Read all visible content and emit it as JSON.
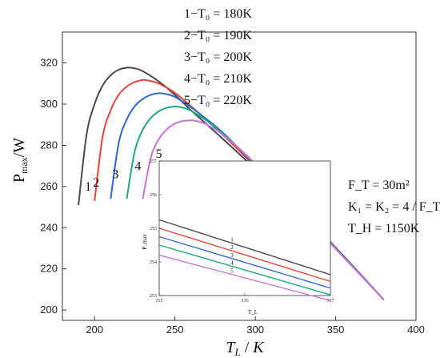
{
  "chart_data": {
    "type": "line",
    "xlabel": "T_L / K",
    "ylabel": "P_max/W",
    "xlim": [
      180,
      400
    ],
    "ylim": [
      195,
      335
    ],
    "xticks": [
      200,
      250,
      300,
      350,
      400
    ],
    "yticks": [
      200,
      220,
      240,
      260,
      280,
      300,
      320
    ],
    "grid": false,
    "legend": {
      "placement": "top-center",
      "entries": [
        "1−T₀ = 180K",
        "2−T₀ = 190K",
        "3−T₀ = 200K",
        "4−T₀ = 210K",
        "5−T₀ = 220K"
      ]
    },
    "parameters": [
      "F_T = 30m²",
      "K₁ = K₂ = 4 / F_T",
      "T_H = 1150K"
    ],
    "series": [
      {
        "name": "1",
        "color": "#4a4a4a",
        "label_at": [
          196,
          258
        ],
        "x": [
          190,
          195,
          200,
          205,
          210,
          215,
          220,
          222,
          225,
          230,
          240,
          250,
          260,
          280,
          300,
          320,
          340,
          360,
          380
        ],
        "y": [
          251,
          285,
          300,
          309,
          314,
          316.7,
          317.7,
          317.7,
          317.4,
          316,
          311,
          304.5,
          297,
          283,
          268.5,
          253.5,
          238.5,
          222,
          205
        ]
      },
      {
        "name": "2",
        "color": "#e8423a",
        "label_at": [
          201,
          260
        ],
        "x": [
          200,
          205,
          210,
          215,
          220,
          225,
          230,
          232,
          235,
          240,
          250,
          260,
          280,
          300,
          320,
          340,
          360,
          380
        ],
        "y": [
          253,
          284,
          297,
          304.5,
          308.5,
          310.7,
          311.7,
          311.6,
          311.2,
          310,
          305.5,
          299,
          285,
          269.5,
          253.2,
          238.3,
          221.8,
          205
        ]
      },
      {
        "name": "3",
        "color": "#2b67d6",
        "label_at": [
          213,
          264
        ],
        "x": [
          210,
          215,
          220,
          225,
          230,
          235,
          240,
          242,
          245,
          250,
          260,
          270,
          280,
          300,
          320,
          340,
          360,
          380
        ],
        "y": [
          254,
          281,
          292.5,
          299,
          302.5,
          304.5,
          305.3,
          305.2,
          304.8,
          303.5,
          298.5,
          292.5,
          286,
          270.2,
          253,
          238.1,
          221.7,
          205
        ]
      },
      {
        "name": "4",
        "color": "#1faa7a",
        "label_at": [
          227,
          268
        ],
        "x": [
          220,
          225,
          230,
          235,
          240,
          245,
          250,
          252,
          255,
          260,
          270,
          280,
          300,
          320,
          340,
          360,
          380
        ],
        "y": [
          254,
          277,
          287.5,
          293.3,
          296.5,
          298.2,
          298.8,
          298.7,
          298.3,
          296.8,
          291.8,
          285.5,
          270.8,
          252.8,
          237.9,
          221.6,
          205
        ]
      },
      {
        "name": "5",
        "color": "#c773d9",
        "label_at": [
          240,
          274
        ],
        "x": [
          230,
          235,
          240,
          245,
          250,
          255,
          260,
          262,
          265,
          270,
          280,
          300,
          320,
          340,
          360,
          380
        ],
        "y": [
          254,
          274,
          283,
          287.8,
          290.5,
          291.8,
          292.1,
          292,
          291.5,
          290,
          285,
          271,
          252.6,
          237.7,
          221.5,
          205
        ]
      }
    ],
    "zoom_box": {
      "x": [
        300,
        338
      ],
      "y": [
        256,
        272
      ],
      "color": "#5ee87a"
    },
    "inset": {
      "xlim": [
        315,
        317
      ],
      "ylim": [
        253,
        257
      ],
      "xticks": [
        315,
        316,
        317
      ],
      "yticks": [
        253,
        254,
        255,
        256,
        257
      ],
      "xlabel": "T_L",
      "ylabel": "P_max",
      "series": [
        {
          "name": "1",
          "y_start": 255.25,
          "y_end": 253.62
        },
        {
          "name": "2",
          "y_start": 255.0,
          "y_end": 253.42
        },
        {
          "name": "3",
          "y_start": 254.75,
          "y_end": 253.22
        },
        {
          "name": "4",
          "y_start": 254.5,
          "y_end": 253.02
        },
        {
          "name": "5",
          "y_start": 254.2,
          "y_end": 252.85
        }
      ]
    }
  }
}
